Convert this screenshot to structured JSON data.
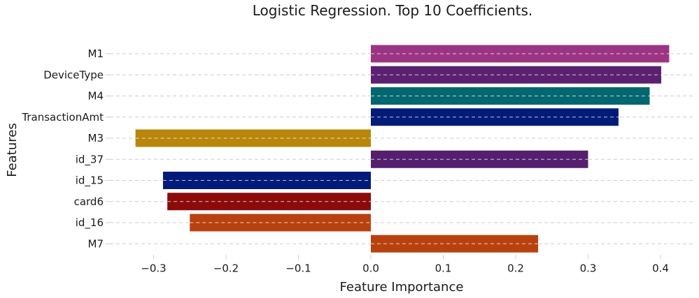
{
  "chart_data": {
    "type": "bar",
    "orientation": "horizontal",
    "title": "Logistic Regression. Top 10 Coefficients.",
    "xlabel": "Feature Importance",
    "ylabel": "Features",
    "categories": [
      "M1",
      "DeviceType",
      "M4",
      "TransactionAmt",
      "M3",
      "id_37",
      "id_15",
      "card6",
      "id_16",
      "M7"
    ],
    "values": [
      0.412,
      0.401,
      0.385,
      0.342,
      -0.325,
      0.3,
      -0.287,
      -0.281,
      -0.25,
      0.231
    ],
    "colors": [
      "#9b3583",
      "#5b2171",
      "#006770",
      "#001b78",
      "#b8860b",
      "#541f6e",
      "#001b78",
      "#8b0a0a",
      "#b8420f",
      "#b8420f"
    ],
    "xlim": [
      -0.36,
      0.445
    ],
    "xticks": [
      -0.3,
      -0.2,
      -0.1,
      0.0,
      0.1,
      0.2,
      0.3,
      0.4
    ],
    "xtick_labels": [
      "−0.3",
      "−0.2",
      "−0.1",
      "0.0",
      "0.1",
      "0.2",
      "0.3",
      "0.4"
    ],
    "grid": true,
    "grid_style": "dashed",
    "grid_color": "#cccccc",
    "legend": "none"
  }
}
